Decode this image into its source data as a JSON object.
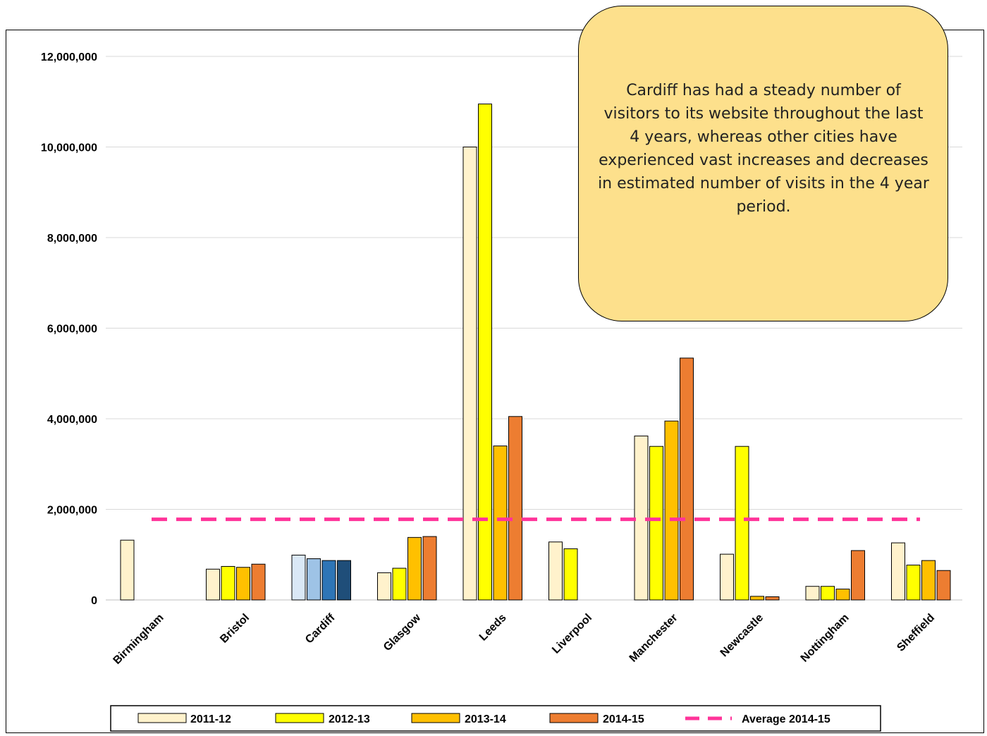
{
  "chart_data": {
    "type": "bar",
    "title": "",
    "xlabel": "",
    "ylabel": "",
    "ylim": [
      0,
      12000000
    ],
    "yticks": [
      0,
      2000000,
      4000000,
      6000000,
      8000000,
      10000000,
      12000000
    ],
    "ytick_labels": [
      "0",
      "2,000,000",
      "4,000,000",
      "6,000,000",
      "8,000,000",
      "10,000,000",
      "12,000,000"
    ],
    "grid": true,
    "legend_position": "bottom",
    "categories": [
      "Birmingham",
      "Bristol",
      "Cardiff",
      "Glasgow",
      "Leeds",
      "Liverpool",
      "Manchester",
      "Newcastle",
      "Nottingham",
      "Sheffield"
    ],
    "series": [
      {
        "name": "2011-12",
        "color": "#fff2cc",
        "values": [
          1320000,
          680000,
          990000,
          600000,
          10000000,
          1280000,
          3620000,
          1010000,
          300000,
          1260000
        ]
      },
      {
        "name": "2012-13",
        "color": "#ffff00",
        "values": [
          null,
          740000,
          910000,
          700000,
          10950000,
          1130000,
          3390000,
          3390000,
          300000,
          770000
        ]
      },
      {
        "name": "2013-14",
        "color": "#ffc000",
        "values": [
          null,
          720000,
          870000,
          1380000,
          3400000,
          null,
          3950000,
          80000,
          240000,
          870000
        ]
      },
      {
        "name": "2014-15",
        "color": "#ed7d31",
        "values": [
          null,
          790000,
          870000,
          1400000,
          4050000,
          null,
          5340000,
          70000,
          1090000,
          650000
        ]
      }
    ],
    "cardiff_colors": [
      "#dae8f6",
      "#9ec3e6",
      "#2e75b6",
      "#1f4e79"
    ],
    "average_line": {
      "name": "Average 2014-15",
      "value": 1780000,
      "color": "#ff3399"
    },
    "annotation": "Cardiff has had a steady number of visitors to its website throughout the last 4 years, whereas other cities have experienced vast increases and decreases in estimated number of visits in the 4 year period."
  }
}
